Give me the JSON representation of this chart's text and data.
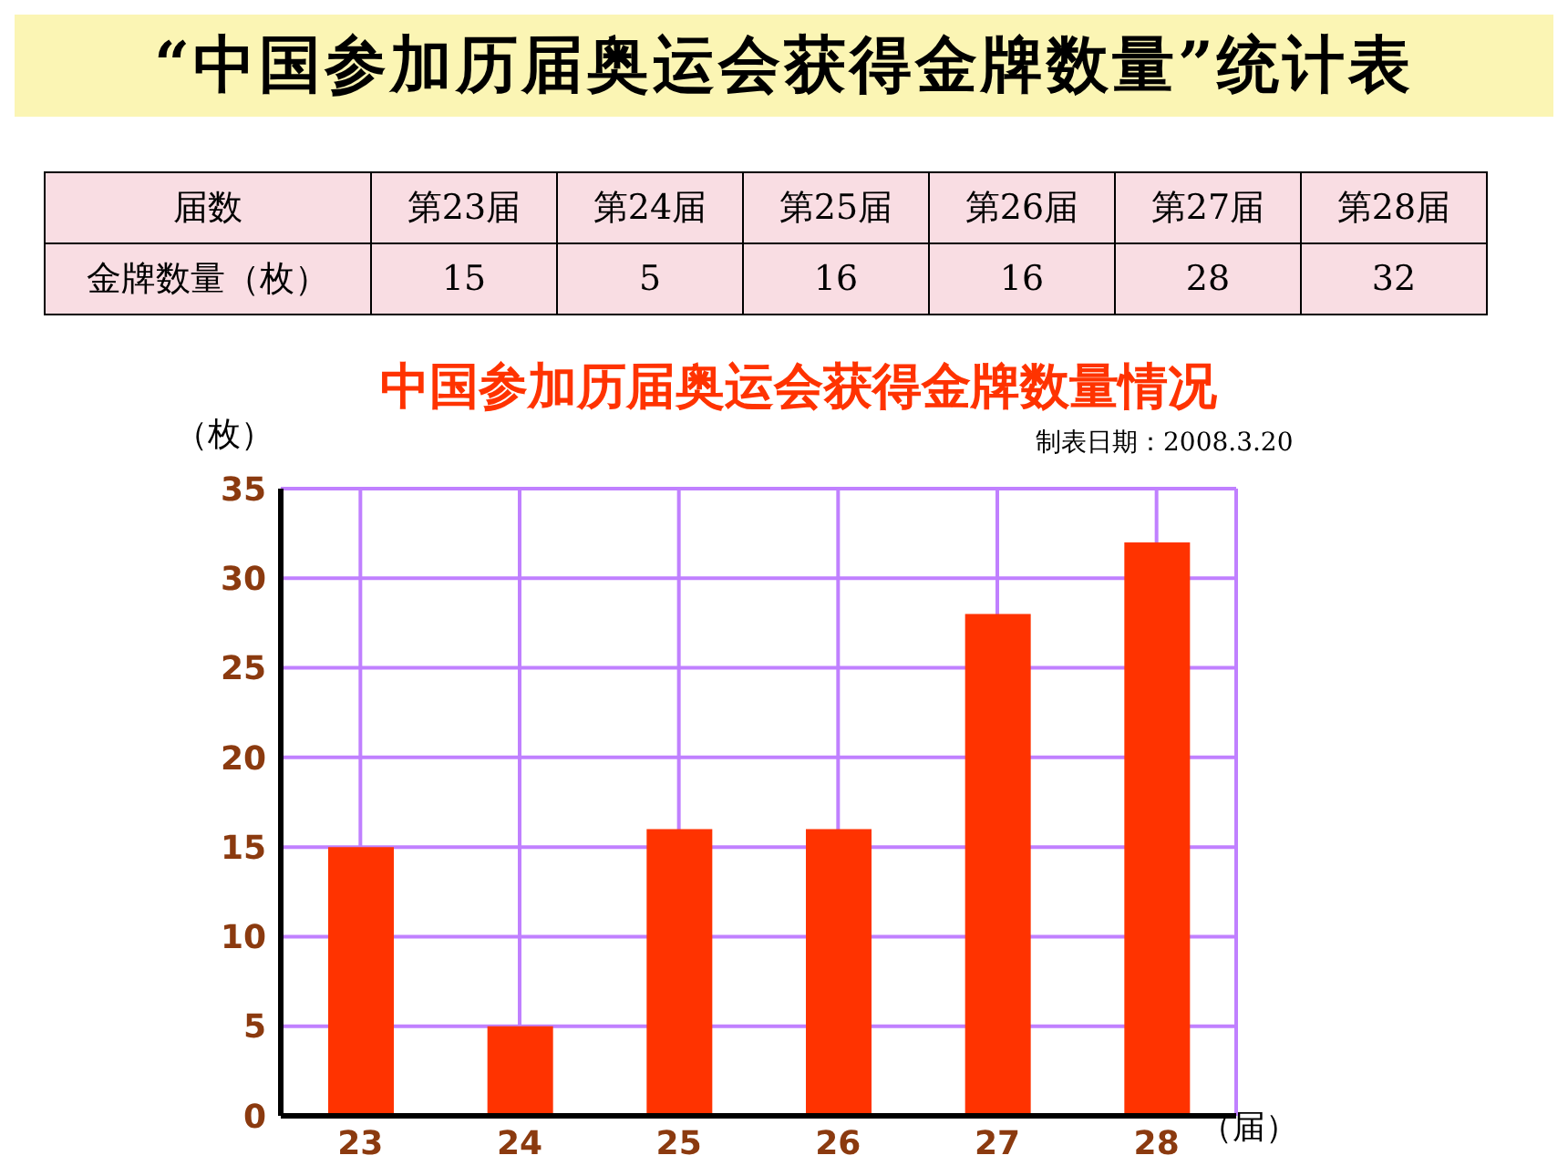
{
  "chart_data": [
    {
      "type": "other",
      "title": "“中国参加历届奥运会获得金牌数量”统计表",
      "annotations": [
        "届数",
        "第23届",
        "第24届",
        "第25届",
        "第26届",
        "第27届",
        "第28届",
        "金牌数量（枚）",
        "15",
        "5",
        "16",
        "16",
        "28",
        "32"
      ]
    },
    {
      "type": "bar",
      "title": "中国参加历届奥运会获得金牌数量情况",
      "xlabel": "（届）",
      "ylabel": "（枚）",
      "annotations": [
        "制表日期：2008.3.20"
      ],
      "categories": [
        "23",
        "24",
        "25",
        "26",
        "27",
        "28"
      ],
      "values": [
        15,
        5,
        16,
        16,
        28,
        32
      ],
      "color": "#ff3300",
      "ylim": [
        0,
        35
      ],
      "yticks": [
        0,
        5,
        10,
        15,
        20,
        25,
        30,
        35
      ],
      "grid": true
    }
  ]
}
